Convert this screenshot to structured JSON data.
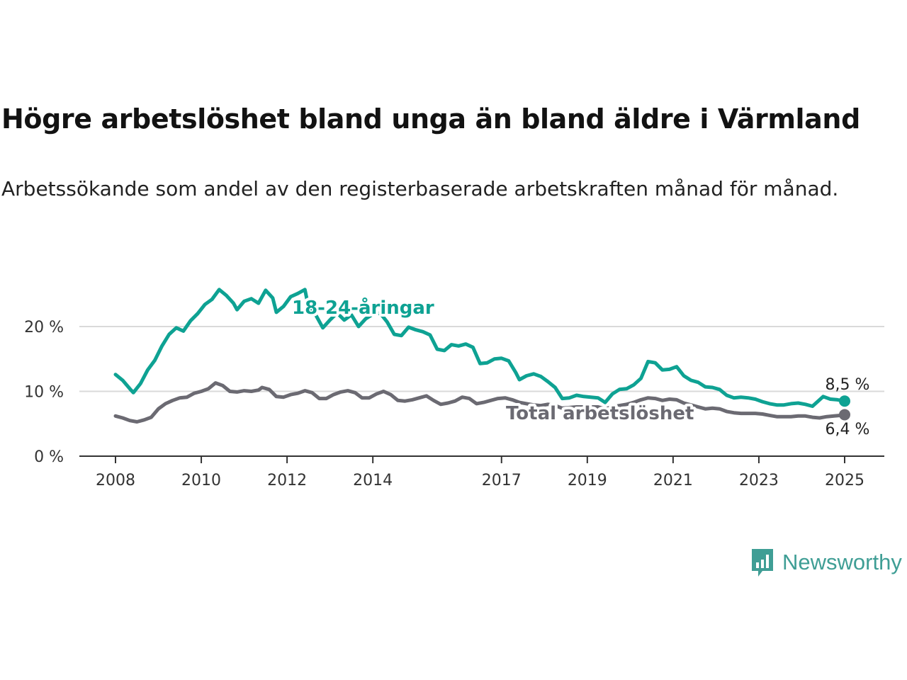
{
  "title": "Högre arbetslöshet bland unga än bland äldre i Värmland",
  "subtitle": "Arbetssökande som andel av den registerbaserade arbetskraften månad för månad.",
  "brand": {
    "name": "Newsworthy",
    "icon": "bar-chart-speech-bubble-icon",
    "color": "#3f9e95"
  },
  "chart_data": {
    "type": "line",
    "title": "",
    "xlabel": "",
    "ylabel": "",
    "ylim": [
      0,
      27.5
    ],
    "xlim": [
      "2007-06",
      "2025-10"
    ],
    "grid": true,
    "y_ticks": [
      {
        "value": 0,
        "label": "0 %"
      },
      {
        "value": 10,
        "label": "10 %"
      },
      {
        "value": 20,
        "label": "20 %"
      }
    ],
    "x_ticks": [
      {
        "value": "2008-01",
        "label": "2008"
      },
      {
        "value": "2010-01",
        "label": "2010"
      },
      {
        "value": "2012-01",
        "label": "2012"
      },
      {
        "value": "2014-01",
        "label": "2014"
      },
      {
        "value": "2017-01",
        "label": "2017"
      },
      {
        "value": "2019-01",
        "label": "2019"
      },
      {
        "value": "2021-01",
        "label": "2021"
      },
      {
        "value": "2023-01",
        "label": "2023"
      },
      {
        "value": "2025-01",
        "label": "2025"
      }
    ],
    "series": [
      {
        "name": "18-24-åringar",
        "color": "#0ea293",
        "end_label": "8,5 %",
        "points": [
          [
            "2008-01",
            12.6
          ],
          [
            "2008-03",
            11.7
          ],
          [
            "2008-05",
            10.4
          ],
          [
            "2008-06",
            9.8
          ],
          [
            "2008-08",
            11.2
          ],
          [
            "2008-10",
            13.3
          ],
          [
            "2008-12",
            14.8
          ],
          [
            "2009-02",
            17.0
          ],
          [
            "2009-04",
            18.8
          ],
          [
            "2009-06",
            19.8
          ],
          [
            "2009-08",
            19.3
          ],
          [
            "2009-10",
            20.9
          ],
          [
            "2009-12",
            22.0
          ],
          [
            "2010-02",
            23.4
          ],
          [
            "2010-04",
            24.2
          ],
          [
            "2010-06",
            25.7
          ],
          [
            "2010-08",
            24.8
          ],
          [
            "2010-10",
            23.6
          ],
          [
            "2010-11",
            22.6
          ],
          [
            "2011-01",
            23.9
          ],
          [
            "2011-03",
            24.3
          ],
          [
            "2011-05",
            23.6
          ],
          [
            "2011-07",
            25.6
          ],
          [
            "2011-09",
            24.4
          ],
          [
            "2011-10",
            22.2
          ],
          [
            "2011-12",
            23.1
          ],
          [
            "2012-02",
            24.6
          ],
          [
            "2012-04",
            25.1
          ],
          [
            "2012-06",
            25.7
          ],
          [
            "2012-07",
            23.0
          ],
          [
            "2012-09",
            21.8
          ],
          [
            "2012-11",
            19.8
          ],
          [
            "2013-01",
            21.0
          ],
          [
            "2013-03",
            22.1
          ],
          [
            "2013-05",
            21.0
          ],
          [
            "2013-07",
            21.8
          ],
          [
            "2013-09",
            20.0
          ],
          [
            "2013-11",
            21.2
          ],
          [
            "2014-01",
            21.9
          ],
          [
            "2014-03",
            22.1
          ],
          [
            "2014-05",
            20.7
          ],
          [
            "2014-07",
            18.8
          ],
          [
            "2014-09",
            18.6
          ],
          [
            "2014-11",
            19.9
          ],
          [
            "2015-01",
            19.5
          ],
          [
            "2015-03",
            19.2
          ],
          [
            "2015-05",
            18.7
          ],
          [
            "2015-07",
            16.5
          ],
          [
            "2015-09",
            16.3
          ],
          [
            "2015-11",
            17.2
          ],
          [
            "2016-01",
            17.0
          ],
          [
            "2016-03",
            17.3
          ],
          [
            "2016-05",
            16.8
          ],
          [
            "2016-07",
            14.3
          ],
          [
            "2016-09",
            14.4
          ],
          [
            "2016-11",
            15.0
          ],
          [
            "2017-01",
            15.1
          ],
          [
            "2017-03",
            14.7
          ],
          [
            "2017-05",
            12.9
          ],
          [
            "2017-06",
            11.8
          ],
          [
            "2017-08",
            12.4
          ],
          [
            "2017-10",
            12.7
          ],
          [
            "2017-12",
            12.3
          ],
          [
            "2018-02",
            11.5
          ],
          [
            "2018-04",
            10.6
          ],
          [
            "2018-06",
            8.9
          ],
          [
            "2018-08",
            9.0
          ],
          [
            "2018-10",
            9.4
          ],
          [
            "2018-12",
            9.2
          ],
          [
            "2019-02",
            9.1
          ],
          [
            "2019-04",
            9.0
          ],
          [
            "2019-06",
            8.3
          ],
          [
            "2019-08",
            9.6
          ],
          [
            "2019-10",
            10.3
          ],
          [
            "2019-12",
            10.4
          ],
          [
            "2020-02",
            11.0
          ],
          [
            "2020-04",
            12.0
          ],
          [
            "2020-06",
            14.6
          ],
          [
            "2020-08",
            14.4
          ],
          [
            "2020-10",
            13.3
          ],
          [
            "2020-12",
            13.4
          ],
          [
            "2021-02",
            13.8
          ],
          [
            "2021-04",
            12.4
          ],
          [
            "2021-06",
            11.7
          ],
          [
            "2021-08",
            11.4
          ],
          [
            "2021-10",
            10.7
          ],
          [
            "2021-12",
            10.6
          ],
          [
            "2022-02",
            10.3
          ],
          [
            "2022-04",
            9.4
          ],
          [
            "2022-06",
            9.0
          ],
          [
            "2022-08",
            9.1
          ],
          [
            "2022-10",
            9.0
          ],
          [
            "2022-12",
            8.8
          ],
          [
            "2023-02",
            8.4
          ],
          [
            "2023-04",
            8.1
          ],
          [
            "2023-06",
            7.9
          ],
          [
            "2023-08",
            7.9
          ],
          [
            "2023-10",
            8.1
          ],
          [
            "2023-12",
            8.2
          ],
          [
            "2024-02",
            8.0
          ],
          [
            "2024-04",
            7.7
          ],
          [
            "2024-06",
            8.7
          ],
          [
            "2024-07",
            9.2
          ],
          [
            "2024-09",
            8.8
          ],
          [
            "2024-11",
            8.7
          ],
          [
            "2025-01",
            8.5
          ],
          [
            "2025-01",
            8.5
          ]
        ]
      },
      {
        "name": "Total arbetslöshet",
        "color": "#6b6a72",
        "end_label": "6,4 %",
        "points": [
          [
            "2008-01",
            6.2
          ],
          [
            "2008-03",
            5.9
          ],
          [
            "2008-05",
            5.5
          ],
          [
            "2008-07",
            5.3
          ],
          [
            "2008-09",
            5.6
          ],
          [
            "2008-11",
            6.0
          ],
          [
            "2009-01",
            7.3
          ],
          [
            "2009-03",
            8.1
          ],
          [
            "2009-05",
            8.6
          ],
          [
            "2009-07",
            9.0
          ],
          [
            "2009-09",
            9.1
          ],
          [
            "2009-11",
            9.7
          ],
          [
            "2010-01",
            10.0
          ],
          [
            "2010-03",
            10.4
          ],
          [
            "2010-05",
            11.3
          ],
          [
            "2010-07",
            10.9
          ],
          [
            "2010-09",
            10.0
          ],
          [
            "2010-11",
            9.9
          ],
          [
            "2011-01",
            10.1
          ],
          [
            "2011-03",
            10.0
          ],
          [
            "2011-05",
            10.2
          ],
          [
            "2011-06",
            10.6
          ],
          [
            "2011-08",
            10.3
          ],
          [
            "2011-10",
            9.2
          ],
          [
            "2011-12",
            9.1
          ],
          [
            "2012-02",
            9.5
          ],
          [
            "2012-04",
            9.7
          ],
          [
            "2012-06",
            10.1
          ],
          [
            "2012-08",
            9.8
          ],
          [
            "2012-10",
            8.9
          ],
          [
            "2012-12",
            8.9
          ],
          [
            "2013-02",
            9.5
          ],
          [
            "2013-04",
            9.9
          ],
          [
            "2013-06",
            10.1
          ],
          [
            "2013-08",
            9.8
          ],
          [
            "2013-10",
            9.0
          ],
          [
            "2013-12",
            9.0
          ],
          [
            "2014-02",
            9.6
          ],
          [
            "2014-04",
            10.0
          ],
          [
            "2014-06",
            9.5
          ],
          [
            "2014-08",
            8.6
          ],
          [
            "2014-10",
            8.5
          ],
          [
            "2014-12",
            8.7
          ],
          [
            "2015-02",
            9.0
          ],
          [
            "2015-04",
            9.3
          ],
          [
            "2015-06",
            8.6
          ],
          [
            "2015-08",
            8.0
          ],
          [
            "2015-10",
            8.2
          ],
          [
            "2015-12",
            8.5
          ],
          [
            "2016-02",
            9.1
          ],
          [
            "2016-04",
            8.9
          ],
          [
            "2016-06",
            8.1
          ],
          [
            "2016-08",
            8.3
          ],
          [
            "2016-10",
            8.6
          ],
          [
            "2016-12",
            8.9
          ],
          [
            "2017-02",
            9.0
          ],
          [
            "2017-04",
            8.7
          ],
          [
            "2017-06",
            8.3
          ],
          [
            "2017-08",
            8.1
          ],
          [
            "2017-10",
            7.9
          ],
          [
            "2017-12",
            7.8
          ],
          [
            "2018-02",
            8.0
          ],
          [
            "2018-04",
            7.8
          ],
          [
            "2018-06",
            7.4
          ],
          [
            "2018-08",
            7.5
          ],
          [
            "2018-10",
            7.6
          ],
          [
            "2018-12",
            7.6
          ],
          [
            "2019-02",
            7.6
          ],
          [
            "2019-04",
            7.6
          ],
          [
            "2019-06",
            7.3
          ],
          [
            "2019-08",
            7.6
          ],
          [
            "2019-10",
            7.8
          ],
          [
            "2019-12",
            8.0
          ],
          [
            "2020-02",
            8.3
          ],
          [
            "2020-04",
            8.7
          ],
          [
            "2020-06",
            9.0
          ],
          [
            "2020-08",
            8.9
          ],
          [
            "2020-10",
            8.6
          ],
          [
            "2020-12",
            8.8
          ],
          [
            "2021-02",
            8.7
          ],
          [
            "2021-04",
            8.2
          ],
          [
            "2021-06",
            7.9
          ],
          [
            "2021-08",
            7.6
          ],
          [
            "2021-10",
            7.3
          ],
          [
            "2021-12",
            7.4
          ],
          [
            "2022-02",
            7.3
          ],
          [
            "2022-04",
            6.9
          ],
          [
            "2022-06",
            6.7
          ],
          [
            "2022-08",
            6.6
          ],
          [
            "2022-10",
            6.6
          ],
          [
            "2022-12",
            6.6
          ],
          [
            "2023-02",
            6.5
          ],
          [
            "2023-04",
            6.3
          ],
          [
            "2023-06",
            6.1
          ],
          [
            "2023-08",
            6.1
          ],
          [
            "2023-10",
            6.1
          ],
          [
            "2023-12",
            6.2
          ],
          [
            "2024-02",
            6.2
          ],
          [
            "2024-04",
            6.0
          ],
          [
            "2024-06",
            5.9
          ],
          [
            "2024-08",
            6.1
          ],
          [
            "2024-10",
            6.2
          ],
          [
            "2024-12",
            6.3
          ],
          [
            "2025-01",
            6.4
          ]
        ]
      }
    ],
    "annotations": [
      {
        "text": "18-24-åringar",
        "series": 0
      },
      {
        "text": "Total arbetslöshet",
        "series": 1
      }
    ]
  }
}
